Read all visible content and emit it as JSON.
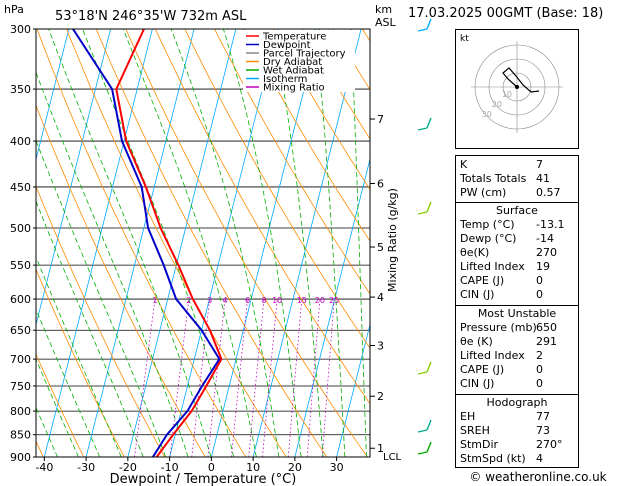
{
  "header": {
    "hpa_label": "hPa",
    "location": "53°18'N  246°35'W  732m  ASL",
    "km_label": "km",
    "asl_label": "ASL",
    "date": "17.03.2025  00GMT  (Base: 18)"
  },
  "legend": [
    {
      "label": "Temperature",
      "color": "#ff0000"
    },
    {
      "label": "Dewpoint",
      "color": "#0000c8"
    },
    {
      "label": "Parcel Trajectory",
      "color": "#888888"
    },
    {
      "label": "Dry Adiabat",
      "color": "#ff8c00"
    },
    {
      "label": "Wet Adiabat",
      "color": "#00b000"
    },
    {
      "label": "Isotherm",
      "color": "#00aaff"
    },
    {
      "label": "Mixing Ratio",
      "color": "#c000c0"
    }
  ],
  "chart_data": {
    "type": "line",
    "xlabel": "Dewpoint / Temperature (°C)",
    "ylabel": "hPa",
    "xlim": [
      -42,
      38
    ],
    "pressure_levels": [
      300,
      350,
      400,
      450,
      500,
      550,
      600,
      650,
      700,
      750,
      800,
      850,
      900
    ],
    "x_ticks": [
      -40,
      -30,
      -20,
      -10,
      0,
      10,
      20,
      30
    ],
    "km_ticks": [
      {
        "km": "7",
        "p": 378
      },
      {
        "km": "6",
        "p": 446
      },
      {
        "km": "5",
        "p": 525
      },
      {
        "km": "4",
        "p": 597
      },
      {
        "km": "3",
        "p": 676
      },
      {
        "km": "2",
        "p": 770
      },
      {
        "km": "1",
        "p": 880
      }
    ],
    "lcl_label": "LCL",
    "lcl_p": 898,
    "mixing_ratio_label": "Mixing Ratio (g/kg)",
    "mixing_ratios": [
      "1",
      "2",
      "3",
      "4",
      "6",
      "8",
      "10",
      "15",
      "20",
      "25"
    ],
    "series": [
      {
        "name": "Temperature",
        "color": "#ff0000",
        "points": [
          [
            300,
            -42
          ],
          [
            350,
            -45
          ],
          [
            400,
            -39.5
          ],
          [
            450,
            -32
          ],
          [
            500,
            -26
          ],
          [
            550,
            -19.5
          ],
          [
            600,
            -14
          ],
          [
            650,
            -8
          ],
          [
            700,
            -3.5
          ],
          [
            750,
            -5.5
          ],
          [
            800,
            -7.5
          ],
          [
            850,
            -10.5
          ],
          [
            900,
            -13.1
          ]
        ]
      },
      {
        "name": "Dewpoint",
        "color": "#0000c8",
        "points": [
          [
            300,
            -59
          ],
          [
            350,
            -46
          ],
          [
            400,
            -40.5
          ],
          [
            450,
            -33
          ],
          [
            500,
            -29
          ],
          [
            550,
            -23
          ],
          [
            600,
            -18
          ],
          [
            650,
            -10
          ],
          [
            700,
            -4
          ],
          [
            750,
            -6.5
          ],
          [
            800,
            -8.5
          ],
          [
            850,
            -12
          ],
          [
            900,
            -14
          ]
        ]
      }
    ]
  },
  "hodograph": {
    "label": "kt",
    "ring_labels": [
      "10",
      "20",
      "30"
    ]
  },
  "indices": [
    {
      "key": "K",
      "value": "7"
    },
    {
      "key": "Totals Totals",
      "value": "41"
    },
    {
      "key": "PW (cm)",
      "value": "0.57"
    }
  ],
  "surface": {
    "title": "Surface",
    "rows": [
      {
        "key": "Temp (°C)",
        "value": "-13.1"
      },
      {
        "key": "Dewp (°C)",
        "value": "-14"
      },
      {
        "key": "θe(K)",
        "value": "270"
      },
      {
        "key": "Lifted Index",
        "value": "19"
      },
      {
        "key": "CAPE (J)",
        "value": "0"
      },
      {
        "key": "CIN (J)",
        "value": "0"
      }
    ]
  },
  "unstable": {
    "title": "Most Unstable",
    "rows": [
      {
        "key": "Pressure (mb)",
        "value": "650"
      },
      {
        "key": "θe (K)",
        "value": "291"
      },
      {
        "key": "Lifted Index",
        "value": "2"
      },
      {
        "key": "CAPE (J)",
        "value": "0"
      },
      {
        "key": "CIN (J)",
        "value": "0"
      }
    ]
  },
  "hodo_table": {
    "title": "Hodograph",
    "rows": [
      {
        "key": "EH",
        "value": "77"
      },
      {
        "key": "SREH",
        "value": "73"
      },
      {
        "key": "StmDir",
        "value": "270°"
      },
      {
        "key": "StmSpd (kt)",
        "value": "4"
      }
    ]
  },
  "footer": "© weatheronline.co.uk"
}
